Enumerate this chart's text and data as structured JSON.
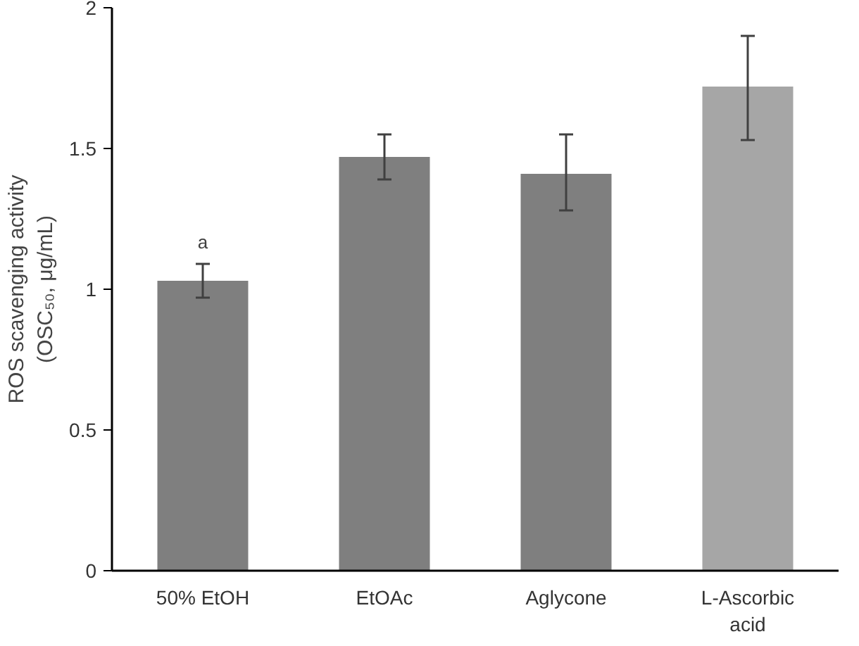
{
  "chart_data": {
    "type": "bar",
    "ylabel": "ROS scavenging activity\n(OSC₅₀, μg/mL)",
    "categories": [
      "50% EtOH",
      "EtOAc",
      "Aglycone",
      "L-Ascorbic\nacid"
    ],
    "values": [
      1.03,
      1.47,
      1.41,
      1.72
    ],
    "colors": [
      "#7f7f7f",
      "#7f7f7f",
      "#7f7f7f",
      "#a6a6a6"
    ],
    "errors": [
      [
        0.97,
        1.09
      ],
      [
        1.39,
        1.55
      ],
      [
        1.28,
        1.55
      ],
      [
        1.53,
        1.9
      ]
    ],
    "annotations": [
      {
        "text": "a",
        "x": "50% EtOH",
        "y": 1.09
      }
    ],
    "ylim": [
      0,
      2
    ],
    "yticks": [
      0,
      0.5,
      1,
      1.5,
      2
    ],
    "grid": false
  }
}
